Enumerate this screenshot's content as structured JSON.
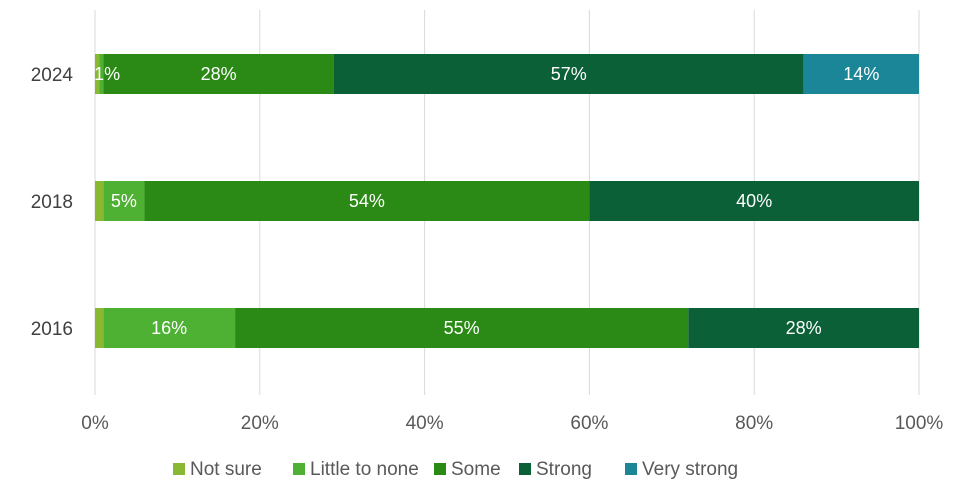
{
  "chart_data": {
    "type": "bar",
    "orientation": "horizontal",
    "stacked": "100%",
    "title": "",
    "xlabel": "",
    "ylabel": "",
    "categories": [
      "2024",
      "2018",
      "2016"
    ],
    "xlim": [
      0,
      100
    ],
    "x_ticks": [
      "0%",
      "20%",
      "40%",
      "60%",
      "80%",
      "100%"
    ],
    "grid": "vertical",
    "legend_position": "bottom",
    "series": [
      {
        "name": "Not sure",
        "color": "#8ab833",
        "values": [
          0.5,
          1,
          1
        ],
        "labels": [
          "",
          "",
          ""
        ]
      },
      {
        "name": "Little to none",
        "color": "#4fb134",
        "values": [
          0.5,
          5,
          16
        ],
        "labels": [
          "1%",
          "5%",
          "16%"
        ]
      },
      {
        "name": "Some",
        "color": "#2b8a16",
        "values": [
          28,
          54,
          55
        ],
        "labels": [
          "28%",
          "54%",
          "55%"
        ]
      },
      {
        "name": "Strong",
        "color": "#0c6038",
        "values": [
          57,
          40,
          28
        ],
        "labels": [
          "57%",
          "40%",
          "28%"
        ]
      },
      {
        "name": "Very strong",
        "color": "#1a8697",
        "values": [
          14,
          0,
          0
        ],
        "labels": [
          "14%",
          "",
          ""
        ]
      }
    ]
  }
}
